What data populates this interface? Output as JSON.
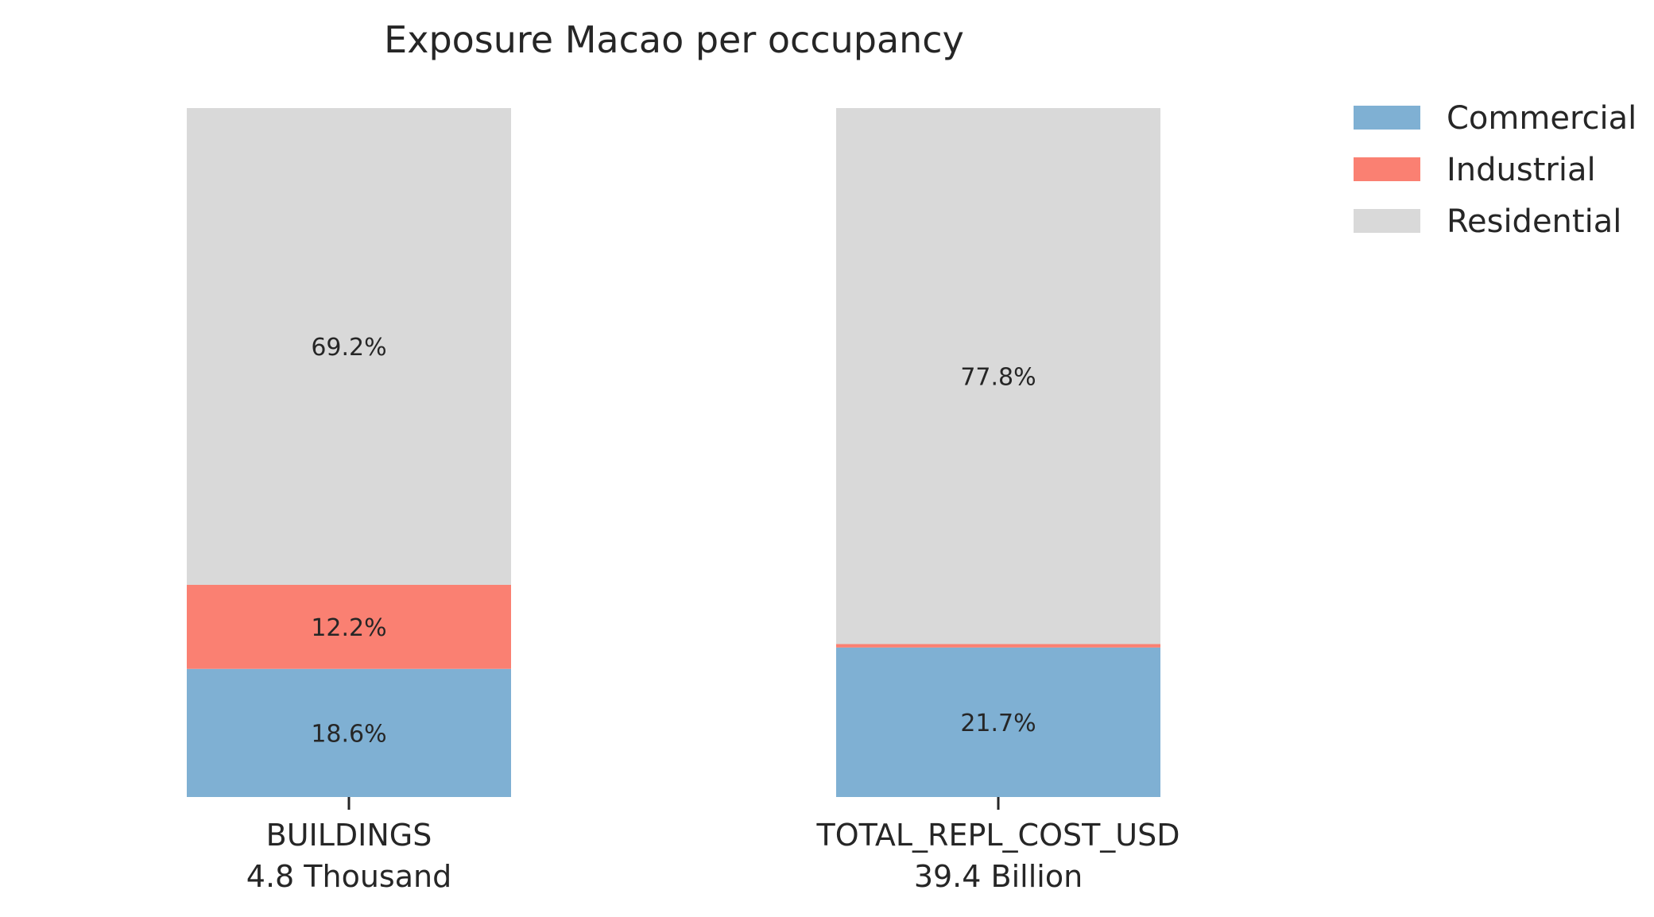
{
  "chart_data": {
    "type": "bar",
    "stacked": true,
    "title": "Exposure Macao per occupancy",
    "categories": [
      "BUILDINGS",
      "TOTAL_REPL_COST_USD"
    ],
    "category_totals": [
      "4.8 Thousand",
      "39.4 Billion"
    ],
    "series": [
      {
        "name": "Commercial",
        "color": "#7fb0d3",
        "values": [
          18.6,
          21.7
        ],
        "labels": [
          "18.6%",
          "21.7%"
        ]
      },
      {
        "name": "Industrial",
        "color": "#fa8072",
        "values": [
          12.2,
          0.5
        ],
        "labels": [
          "12.2%",
          ""
        ]
      },
      {
        "name": "Residential",
        "color": "#d9d9d9",
        "values": [
          69.2,
          77.8
        ],
        "labels": [
          "69.2%",
          "77.8%"
        ]
      }
    ],
    "ylim": [
      0,
      100
    ],
    "grid": false,
    "legend": "top-right",
    "xlabel": "",
    "ylabel": ""
  }
}
